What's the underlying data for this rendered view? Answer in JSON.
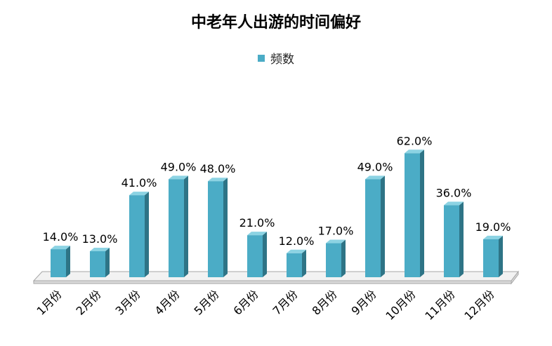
{
  "chart_data": {
    "type": "bar",
    "title": "中老年人出游的时间偏好",
    "legend": {
      "position": "top",
      "label": "频数"
    },
    "categories": [
      "1月份",
      "2月份",
      "3月份",
      "4月份",
      "5月份",
      "6月份",
      "7月份",
      "8月份",
      "9月份",
      "10月份",
      "11月份",
      "12月份"
    ],
    "series": [
      {
        "name": "频数",
        "values": [
          14.0,
          13.0,
          41.0,
          49.0,
          48.0,
          21.0,
          12.0,
          17.0,
          49.0,
          62.0,
          36.0,
          19.0
        ]
      }
    ],
    "data_labels": [
      "14.0%",
      "13.0%",
      "41.0%",
      "49.0%",
      "48.0%",
      "21.0%",
      "12.0%",
      "17.0%",
      "49.0%",
      "62.0%",
      "36.0%",
      "19.0%"
    ],
    "ylim": [
      0,
      70
    ],
    "grid": false,
    "style": "3d-column",
    "colors": {
      "front": "#4BACC6",
      "side": "#2E7486",
      "top": "#8CD3E3",
      "floor_top": "#F2F2F2",
      "floor_front": "#D9D9D9",
      "floor_stroke": "#A6A6A6"
    }
  }
}
